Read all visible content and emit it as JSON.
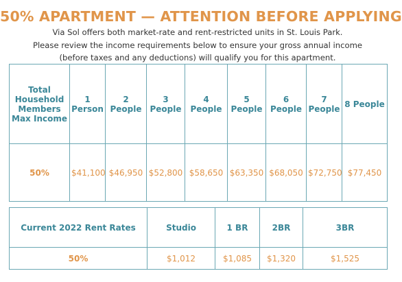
{
  "header": {
    "title": "50% APARTMENT — ATTENTION BEFORE APPLYING",
    "lines": [
      "Via Sol offers both market-rate and rent-restricted units in St. Louis Park.",
      "Please review the income requirements below to ensure your gross annual income",
      "(before taxes and any deductions) will qualify you for this apartment."
    ]
  },
  "income_table": {
    "header": [
      "Total Household Members Max Income",
      "1 Person",
      "2 People",
      "3 People",
      "4 People",
      "5 People",
      "6 People",
      "7 People",
      "8 People"
    ],
    "rows": [
      [
        "50%",
        "$41,100",
        "$46,950",
        "$52,800",
        "$58,650",
        "$63,350",
        "$68,050",
        "$72,750",
        "$77,450"
      ]
    ]
  },
  "rent_table": {
    "header": [
      "Current 2022 Rent Rates",
      "Studio",
      "1 BR",
      "2BR",
      "3BR"
    ],
    "rows": [
      [
        "50%",
        "$1,012",
        "$1,085",
        "$1,320",
        "$1,525"
      ]
    ]
  }
}
